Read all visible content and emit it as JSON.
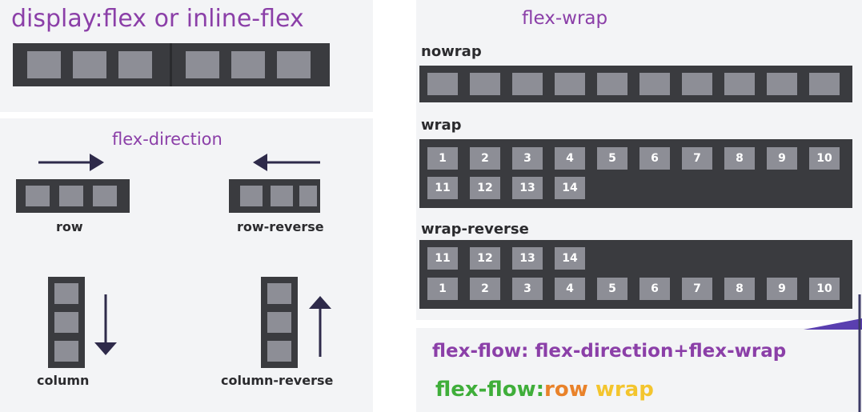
{
  "display_section": {
    "title": "display:flex or inline-flex"
  },
  "direction_section": {
    "title": "flex-direction",
    "labels": {
      "row": "row",
      "row_reverse": "row-reverse",
      "column": "column",
      "column_reverse": "column-reverse"
    }
  },
  "wrap_section": {
    "title": "flex-wrap",
    "nowrap_label": "nowrap",
    "wrap_label": "wrap",
    "wrap_reverse_label": "wrap-reverse",
    "items": [
      "1",
      "2",
      "3",
      "4",
      "5",
      "6",
      "7",
      "8",
      "9",
      "10",
      "11",
      "12",
      "13",
      "14"
    ]
  },
  "flow_section": {
    "formula": "flex-flow: flex-direction+flex-wrap",
    "example_prefix": "flex-flow:",
    "example_direction": "row",
    "example_wrap": "wrap",
    "colors": {
      "title": "#8b3fa8",
      "prefix": "#3fae3a",
      "direction": "#e9822a",
      "wrap": "#f3c52e"
    }
  }
}
